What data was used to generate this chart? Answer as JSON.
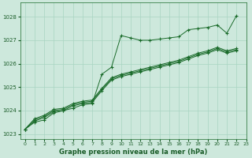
{
  "xlabel": "Graphe pression niveau de la mer (hPa)",
  "background_color": "#cde8dc",
  "grid_color": "#a8d4c2",
  "line_color": "#1a6b2a",
  "text_color": "#1a5c28",
  "xlim": [
    -0.5,
    23
  ],
  "ylim": [
    1022.8,
    1028.6
  ],
  "yticks": [
    1023,
    1024,
    1025,
    1026,
    1027,
    1028
  ],
  "xticks": [
    0,
    1,
    2,
    3,
    4,
    5,
    6,
    7,
    8,
    9,
    10,
    11,
    12,
    13,
    14,
    15,
    16,
    17,
    18,
    19,
    20,
    21,
    22,
    23
  ],
  "series": [
    [
      1023.2,
      1023.5,
      1023.6,
      1023.9,
      1024.0,
      1024.1,
      1024.25,
      1024.3,
      1025.55,
      1025.85,
      1027.2,
      1027.1,
      1027.0,
      1027.0,
      1027.05,
      1027.1,
      1027.15,
      1027.45,
      1027.5,
      1027.55,
      1027.65,
      1027.3,
      1028.05
    ],
    [
      1023.2,
      1023.55,
      1023.7,
      1023.95,
      1024.0,
      1024.2,
      1024.3,
      1024.35,
      1024.85,
      1025.3,
      1025.45,
      1025.55,
      1025.65,
      1025.75,
      1025.85,
      1025.95,
      1026.05,
      1026.2,
      1026.35,
      1026.45,
      1026.6,
      1026.45,
      1026.55
    ],
    [
      1023.2,
      1023.6,
      1023.75,
      1024.0,
      1024.05,
      1024.25,
      1024.35,
      1024.4,
      1024.9,
      1025.35,
      1025.5,
      1025.6,
      1025.7,
      1025.8,
      1025.9,
      1026.0,
      1026.1,
      1026.25,
      1026.4,
      1026.5,
      1026.65,
      1026.5,
      1026.6
    ],
    [
      1023.2,
      1023.65,
      1023.8,
      1024.05,
      1024.1,
      1024.3,
      1024.4,
      1024.45,
      1024.95,
      1025.4,
      1025.55,
      1025.65,
      1025.75,
      1025.85,
      1025.95,
      1026.05,
      1026.15,
      1026.3,
      1026.45,
      1026.55,
      1026.7,
      1026.55,
      1026.65
    ]
  ]
}
